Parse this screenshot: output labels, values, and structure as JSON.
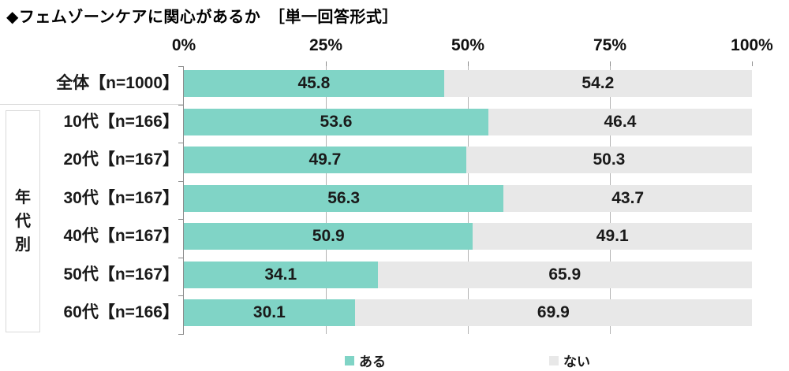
{
  "title": "◆フェムゾーンケアに関心があるか　［単一回答形式］",
  "group_label": "年代別",
  "colors": {
    "bar_yes": "#80d4c6",
    "bar_no": "#e8e8e8",
    "gridline": "#b3b3b3",
    "axis": "#8c8c8c",
    "separator": "#d9d9d9"
  },
  "legend": {
    "items": [
      {
        "label": "ある",
        "color": "#80d4c6"
      },
      {
        "label": "ない",
        "color": "#e8e8e8"
      }
    ]
  },
  "chart_data": {
    "type": "bar",
    "orientation": "horizontal",
    "stacked": true,
    "title": "◆フェムゾーンケアに関心があるか　［単一回答形式］",
    "categories": [
      "全体【n=1000】",
      "10代【n=166】",
      "20代【n=167】",
      "30代【n=167】",
      "40代【n=167】",
      "50代【n=167】",
      "60代【n=166】"
    ],
    "series": [
      {
        "name": "ある",
        "color": "#80d4c6",
        "values": [
          45.8,
          53.6,
          49.7,
          56.3,
          50.9,
          34.1,
          30.1
        ]
      },
      {
        "name": "ない",
        "color": "#e8e8e8",
        "values": [
          54.2,
          46.4,
          50.3,
          43.7,
          49.1,
          65.9,
          69.9
        ]
      }
    ],
    "x_ticks": [
      "0%",
      "25%",
      "50%",
      "75%",
      "100%"
    ],
    "xlim": [
      0,
      100
    ],
    "value_axis_position": "top",
    "legend_position": "bottom",
    "grid": "vertical-major",
    "group_label": "年代別",
    "group_rows_from": 1,
    "group_rows_to": 6
  }
}
